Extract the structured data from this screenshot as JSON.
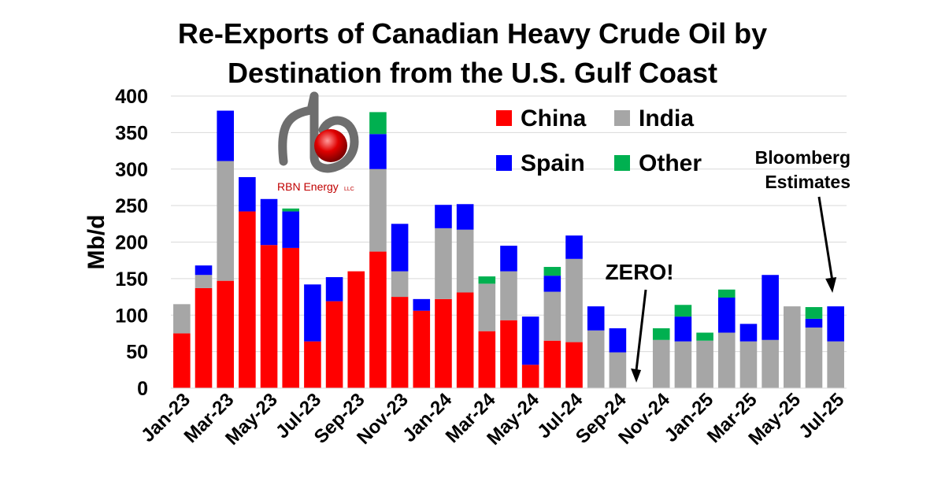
{
  "chart_data": {
    "type": "bar",
    "stacked": true,
    "title_line1": "Re-Exports of Canadian Heavy Crude Oil by",
    "title_line2": "Destination from the U.S. Gulf Coast",
    "ylabel": "Mb/d",
    "xlabel": "",
    "ylim": [
      0,
      400
    ],
    "yticks": [
      0,
      50,
      100,
      150,
      200,
      250,
      300,
      350,
      400
    ],
    "grid": true,
    "legend_position": "top-right",
    "categories": [
      "Jan-23",
      "Feb-23",
      "Mar-23",
      "Apr-23",
      "May-23",
      "Jun-23",
      "Jul-23",
      "Aug-23",
      "Sep-23",
      "Oct-23",
      "Nov-23",
      "Dec-23",
      "Jan-24",
      "Feb-24",
      "Mar-24",
      "Apr-24",
      "May-24",
      "Jun-24",
      "Jul-24",
      "Aug-24",
      "Sep-24",
      "Oct-24",
      "Nov-24",
      "Dec-24",
      "Jan-25",
      "Feb-25",
      "Mar-25",
      "Apr-25",
      "May-25",
      "Jun-25",
      "Jul-25"
    ],
    "x_tick_labels": [
      "Jan-23",
      "Mar-23",
      "May-23",
      "Jul-23",
      "Sep-23",
      "Nov-23",
      "Jan-24",
      "Mar-24",
      "May-24",
      "Jul-24",
      "Sep-24",
      "Nov-24",
      "Jan-25",
      "Mar-25",
      "May-25",
      "Jul-25"
    ],
    "series": [
      {
        "name": "China",
        "color": "#ff0000",
        "values": [
          75,
          137,
          147,
          242,
          196,
          192,
          64,
          119,
          160,
          187,
          125,
          106,
          122,
          131,
          78,
          93,
          32,
          65,
          63,
          0,
          0,
          0,
          0,
          0,
          0,
          0,
          0,
          0,
          0,
          0,
          0
        ]
      },
      {
        "name": "India",
        "color": "#a6a6a6",
        "values": [
          40,
          18,
          164,
          0,
          0,
          0,
          0,
          0,
          0,
          113,
          35,
          0,
          97,
          86,
          65,
          67,
          0,
          67,
          114,
          79,
          49,
          0,
          66,
          64,
          65,
          76,
          64,
          66,
          112,
          83,
          64
        ]
      },
      {
        "name": "Spain",
        "color": "#0000ff",
        "values": [
          0,
          13,
          69,
          47,
          63,
          50,
          78,
          33,
          0,
          48,
          65,
          16,
          32,
          35,
          0,
          35,
          66,
          22,
          32,
          33,
          33,
          0,
          0,
          34,
          0,
          48,
          24,
          89,
          0,
          12,
          48
        ]
      },
      {
        "name": "Other",
        "color": "#00b050",
        "values": [
          0,
          0,
          0,
          0,
          0,
          4,
          0,
          0,
          0,
          30,
          0,
          0,
          0,
          0,
          10,
          0,
          0,
          12,
          0,
          0,
          0,
          0,
          16,
          16,
          11,
          11,
          0,
          0,
          0,
          16,
          0
        ]
      }
    ],
    "annotations": [
      {
        "text": "ZERO!",
        "category": "Oct-24"
      },
      {
        "text": "Bloomberg\nEstimates",
        "category": "Jul-25"
      }
    ]
  },
  "logo": {
    "brand": "RBN Energy",
    "suffix": "LLC"
  }
}
